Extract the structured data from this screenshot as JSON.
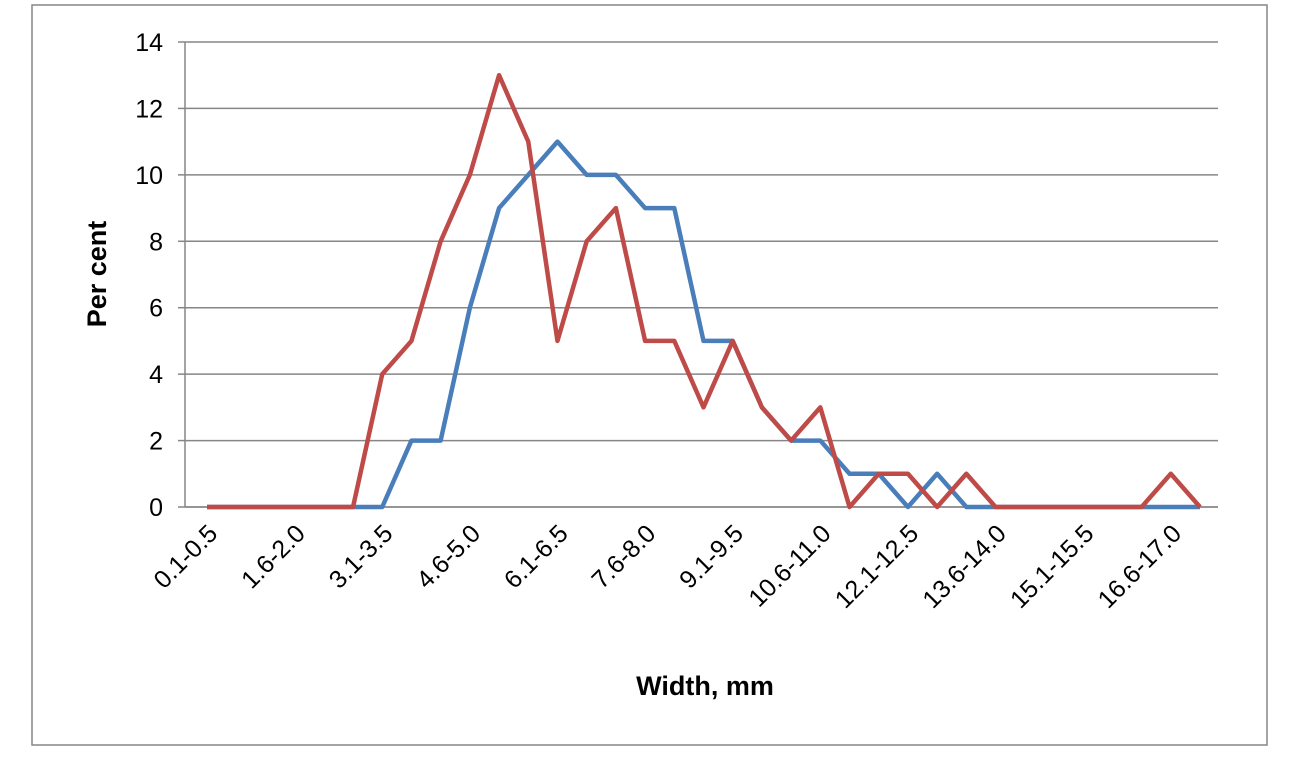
{
  "chart_data": {
    "type": "line",
    "x_label": "Width, mm",
    "y_label": "Per cent",
    "categories": [
      "0.1-0.5",
      null,
      null,
      "1.6-2.0",
      null,
      null,
      "3.1-3.5",
      null,
      null,
      "4.6-5.0",
      null,
      null,
      "6.1-6.5",
      null,
      null,
      "7.6-8.0",
      null,
      null,
      "9.1-9.5",
      null,
      null,
      "10.6-11.0",
      null,
      null,
      "12.1-12.5",
      null,
      null,
      "13.6-14.0",
      null,
      null,
      "15.1-15.5",
      null,
      null,
      "16.6-17.0",
      null
    ],
    "series": [
      {
        "color": "#4a7ebb",
        "values": [
          0,
          0,
          0,
          0,
          0,
          0,
          0,
          2,
          2,
          6,
          9,
          10,
          11,
          10,
          10,
          9,
          9,
          5,
          5,
          3,
          2,
          2,
          1,
          1,
          0,
          1,
          0,
          0,
          0,
          0,
          0,
          0,
          0,
          0,
          0
        ]
      },
      {
        "color": "#be4b48",
        "values": [
          0,
          0,
          0,
          0,
          0,
          0,
          4,
          5,
          8,
          10,
          13,
          11,
          5,
          8,
          9,
          5,
          5,
          3,
          5,
          3,
          2,
          3,
          0,
          1,
          1,
          0,
          1,
          0,
          0,
          0,
          0,
          0,
          0,
          1,
          0
        ]
      }
    ],
    "ylim": [
      0,
      14
    ],
    "yticks": [
      0,
      2,
      4,
      6,
      8,
      10,
      12,
      14
    ],
    "grid": true
  }
}
